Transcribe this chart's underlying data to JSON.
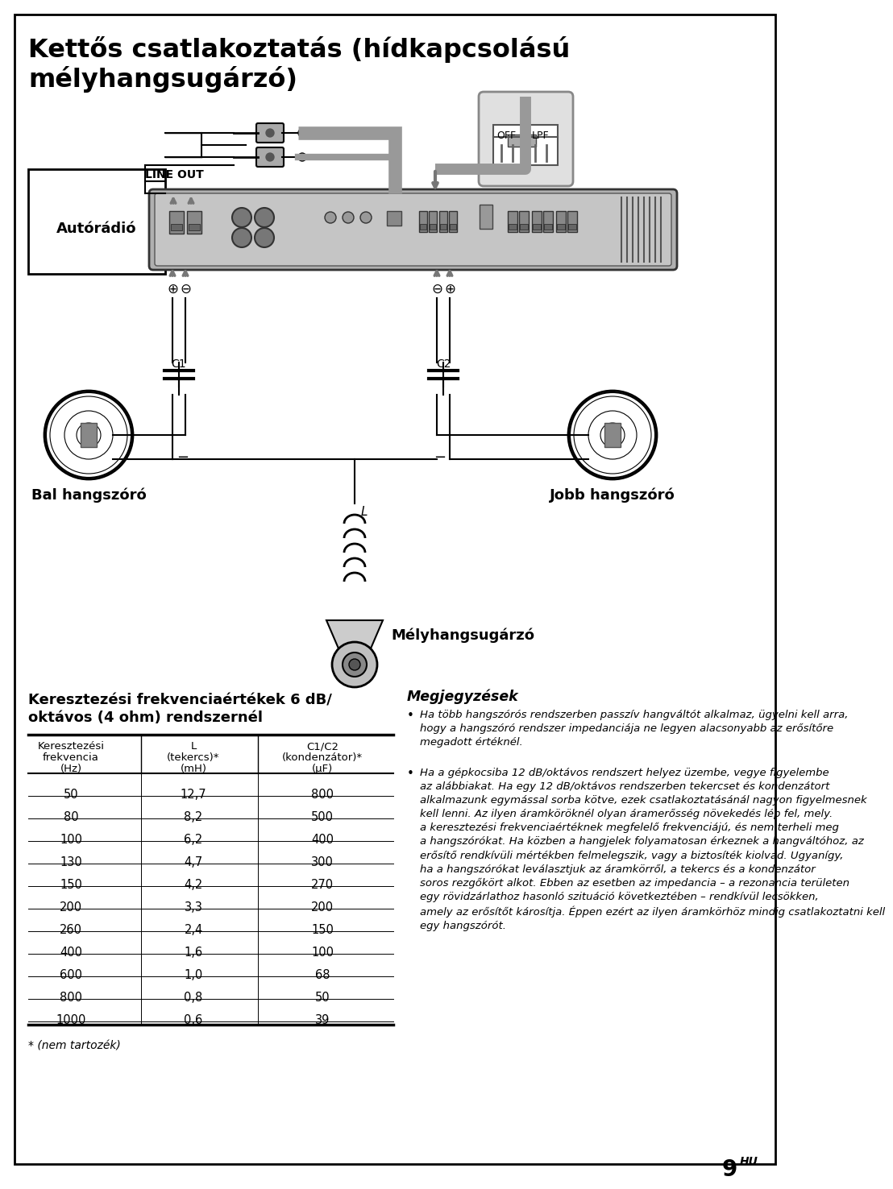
{
  "title_line1": "Kettős csatlakoztatás (hídkapcsolású",
  "title_line2": "mélyhangsugárzó)",
  "label_line_out": "LINE OUT",
  "label_autoradio": "Autórádió",
  "label_off": "OFF",
  "label_lpf": "LPF",
  "label_c1": "C1",
  "label_c2": "C2",
  "label_l": "L",
  "label_bal": "Bal hangszóró",
  "label_jobb": "Jobb hangszóró",
  "label_mely": "Mélyhangsugárzó",
  "table_title_line1": "Keresztezési frekvenciaértékek 6 dB/",
  "table_title_line2": "oktávos (4 ohm) rendszernél",
  "col1_header_line1": "Keresztezési",
  "col1_header_line2": "frekvencia",
  "col1_header_line3": "(Hz)",
  "col2_header_line1": "L",
  "col2_header_line2": "(tekercs)*",
  "col2_header_line3": "(mH)",
  "col3_header_line1": "C1/C2",
  "col3_header_line2": "(kondenzátor)*",
  "col3_header_line3": "(μF)",
  "table_data": [
    [
      50,
      "12,7",
      800
    ],
    [
      80,
      "8,2",
      500
    ],
    [
      100,
      "6,2",
      400
    ],
    [
      130,
      "4,7",
      300
    ],
    [
      150,
      "4,2",
      270
    ],
    [
      200,
      "3,3",
      200
    ],
    [
      260,
      "2,4",
      150
    ],
    [
      400,
      "1,6",
      100
    ],
    [
      600,
      "1,0",
      68
    ],
    [
      800,
      "0,8",
      50
    ],
    [
      1000,
      "0,6",
      39
    ]
  ],
  "footnote": "* (nem tartozék)",
  "notes_title": "Megjegyzések",
  "notes_bullet1": "Ha több hangszórós rendszerben passzív hangváltót alkalmaz, ügyelni kell arra,\nhogy a hangszóró rendszer impedanciája ne legyen alacsonyabb az erősítőre\nmegadott értéknél.",
  "notes_bullet2": "Ha a gépkocsiba 12 dB/oktávos rendszert helyez üzembe, vegye figyelembe\naz alábbiakat. Ha egy 12 dB/oktávos rendszerben tekercset és kondenzátort\nalkalmazunk egymással sorba kötve, ezek csatlakoztatásánál nagyon figyelmesnek\nkell lenni. Az ilyen áramköröknél olyan áramerősség növekedés lép fel, mely.\na keresztezési frekvenciaértéknek megfelelő frekvenciájú, és nem terheli meg\na hangszórókat. Ha közben a hangjelek folyamatosan érkeznek a hangváltóhoz, az\nerősítő rendkívüli mértékben felmelegszik, vagy a biztosíték kiolvad. Ugyanígy,\nha a hangszórókat leválasztjuk az áramkörről, a tekercs és a kondenzátor\nsoros rezgőkört alkot. Ebben az esetben az impedancia – a rezonancia területen\negy rövidzárlathoz hasonló szituáció következtében – rendkívül lecsökken,\namely az erősítőt károsítja. Éppen ezért az ilyen áramkörhöz mindig csatlakoztatni kell\negy hangszórót.",
  "page_number": "9",
  "page_lang": "HU",
  "bg_color": "#ffffff",
  "border_color": "#000000",
  "text_color": "#000000",
  "gray": "#888888",
  "lightgray": "#cccccc",
  "darkgray": "#444444"
}
